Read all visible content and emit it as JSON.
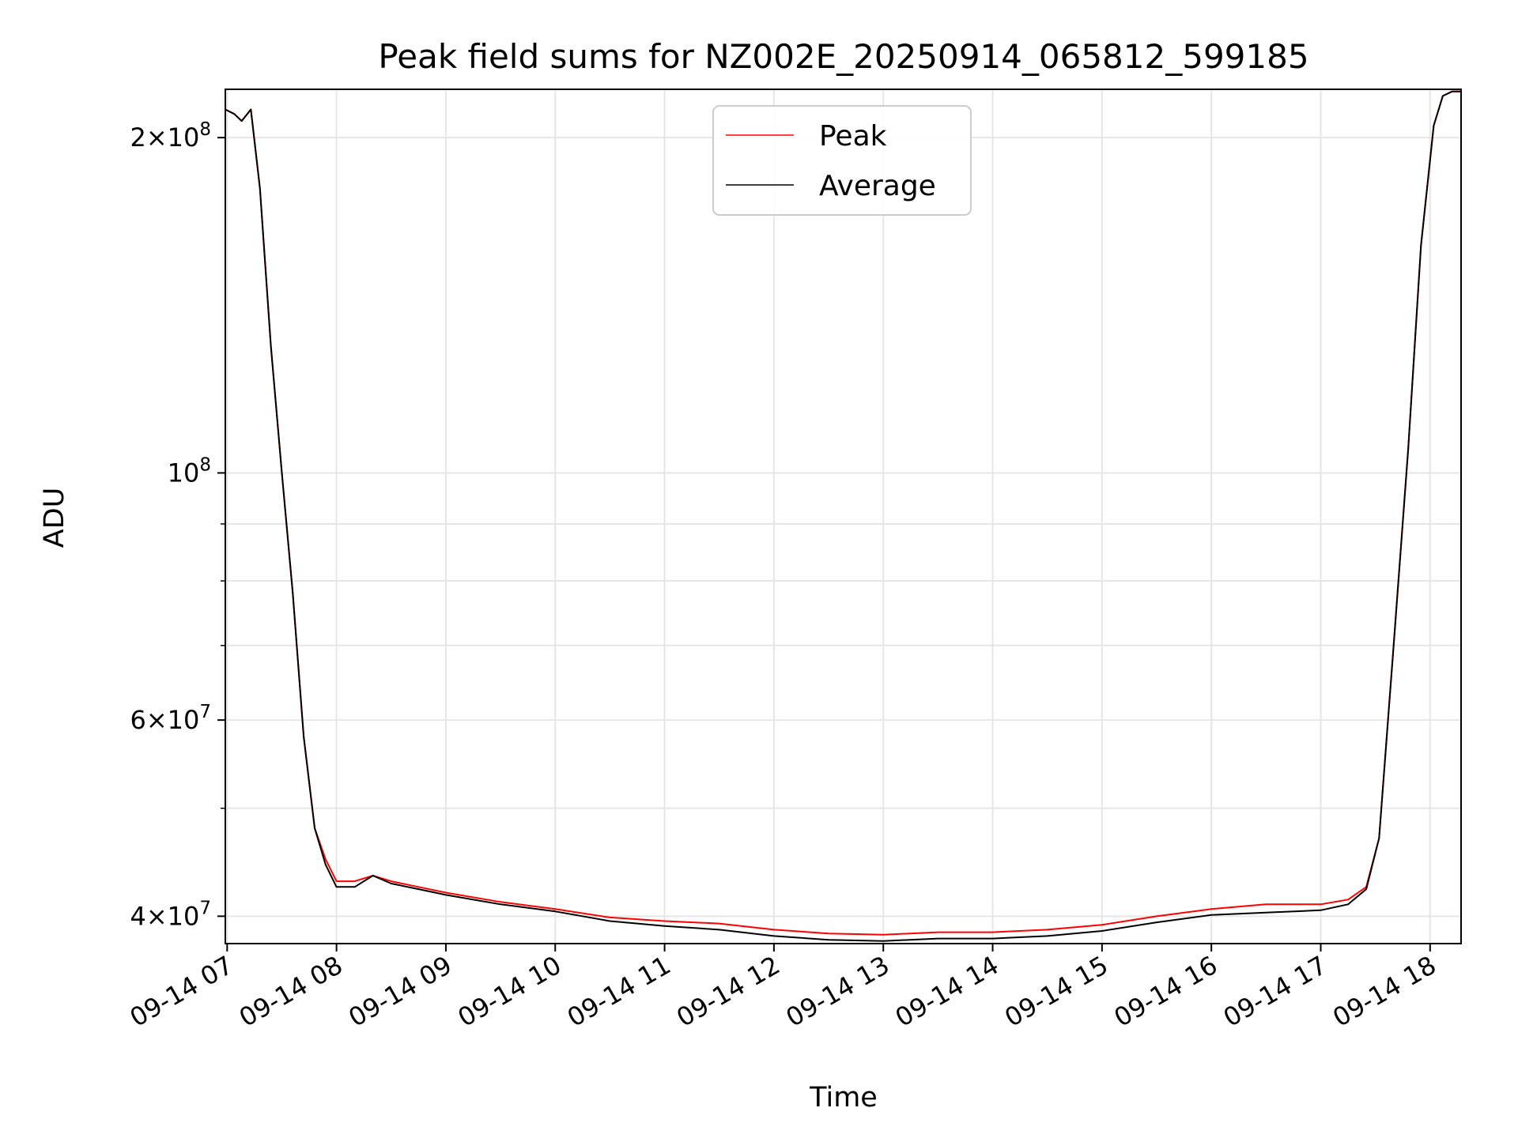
{
  "chart_data": {
    "type": "line",
    "title": "Peak field sums for NZ002E_20250914_065812_599185",
    "xlabel": "Time",
    "ylabel": "ADU",
    "yscale": "log",
    "xlim": [
      "2025-09-14 06:59",
      "2025-09-14 18:17"
    ],
    "ylim": [
      37800000,
      221000000
    ],
    "grid": true,
    "legend_position": "top-center",
    "x_ticks": [
      "09-14 07",
      "09-14 08",
      "09-14 09",
      "09-14 10",
      "09-14 11",
      "09-14 12",
      "09-14 13",
      "09-14 14",
      "09-14 15",
      "09-14 16",
      "09-14 17",
      "09-14 18"
    ],
    "y_tick_labels": [
      {
        "value": 40000000,
        "mantissa": "4",
        "exponent": "7"
      },
      {
        "value": 60000000,
        "mantissa": "6",
        "exponent": "7"
      },
      {
        "value": 100000000,
        "mantissa": "",
        "exponent": "8"
      },
      {
        "value": 200000000,
        "mantissa": "2",
        "exponent": "8"
      }
    ],
    "y_minor_ticks": [
      50000000,
      70000000,
      80000000,
      90000000
    ],
    "series": [
      {
        "name": "Peak",
        "color": "#ff0000",
        "x": [
          "2025-09-14 06:59",
          "2025-09-14 07:04",
          "2025-09-14 07:08",
          "2025-09-14 07:13",
          "2025-09-14 07:18",
          "2025-09-14 07:24",
          "2025-09-14 07:30",
          "2025-09-14 07:36",
          "2025-09-14 07:42",
          "2025-09-14 07:48",
          "2025-09-14 07:54",
          "2025-09-14 08:00",
          "2025-09-14 08:10",
          "2025-09-14 08:20",
          "2025-09-14 08:30",
          "2025-09-14 08:45",
          "2025-09-14 09:00",
          "2025-09-14 09:30",
          "2025-09-14 10:00",
          "2025-09-14 10:30",
          "2025-09-14 11:00",
          "2025-09-14 11:30",
          "2025-09-14 12:00",
          "2025-09-14 12:30",
          "2025-09-14 13:00",
          "2025-09-14 13:30",
          "2025-09-14 14:00",
          "2025-09-14 14:30",
          "2025-09-14 15:00",
          "2025-09-14 15:30",
          "2025-09-14 16:00",
          "2025-09-14 16:30",
          "2025-09-14 17:00",
          "2025-09-14 17:15",
          "2025-09-14 17:25",
          "2025-09-14 17:32",
          "2025-09-14 17:40",
          "2025-09-14 17:48",
          "2025-09-14 17:55",
          "2025-09-14 18:02",
          "2025-09-14 18:07",
          "2025-09-14 18:12",
          "2025-09-14 18:17"
        ],
        "y": [
          212000000,
          210000000,
          207000000,
          212000000,
          180000000,
          130000000,
          100000000,
          78000000,
          58000000,
          48000000,
          45000000,
          43000000,
          43000000,
          43500000,
          43000000,
          42500000,
          42000000,
          41200000,
          40600000,
          39900000,
          39600000,
          39400000,
          38900000,
          38600000,
          38500000,
          38700000,
          38700000,
          38900000,
          39300000,
          40000000,
          40600000,
          41000000,
          41000000,
          41400000,
          42500000,
          47000000,
          70000000,
          105000000,
          160000000,
          205000000,
          218000000,
          220000000,
          220000000
        ]
      },
      {
        "name": "Average",
        "color": "#000000",
        "x": [
          "2025-09-14 06:59",
          "2025-09-14 07:04",
          "2025-09-14 07:08",
          "2025-09-14 07:13",
          "2025-09-14 07:18",
          "2025-09-14 07:24",
          "2025-09-14 07:30",
          "2025-09-14 07:36",
          "2025-09-14 07:42",
          "2025-09-14 07:48",
          "2025-09-14 07:54",
          "2025-09-14 08:00",
          "2025-09-14 08:10",
          "2025-09-14 08:20",
          "2025-09-14 08:30",
          "2025-09-14 08:45",
          "2025-09-14 09:00",
          "2025-09-14 09:30",
          "2025-09-14 10:00",
          "2025-09-14 10:30",
          "2025-09-14 11:00",
          "2025-09-14 11:30",
          "2025-09-14 12:00",
          "2025-09-14 12:30",
          "2025-09-14 13:00",
          "2025-09-14 13:30",
          "2025-09-14 14:00",
          "2025-09-14 14:30",
          "2025-09-14 15:00",
          "2025-09-14 15:30",
          "2025-09-14 16:00",
          "2025-09-14 16:30",
          "2025-09-14 17:00",
          "2025-09-14 17:15",
          "2025-09-14 17:25",
          "2025-09-14 17:32",
          "2025-09-14 17:40",
          "2025-09-14 17:48",
          "2025-09-14 17:55",
          "2025-09-14 18:02",
          "2025-09-14 18:07",
          "2025-09-14 18:12",
          "2025-09-14 18:17"
        ],
        "y": [
          212000000,
          210000000,
          207000000,
          212000000,
          180000000,
          130000000,
          100000000,
          78000000,
          58000000,
          48000000,
          44500000,
          42500000,
          42500000,
          43500000,
          42800000,
          42300000,
          41800000,
          41000000,
          40400000,
          39600000,
          39200000,
          38900000,
          38400000,
          38100000,
          38000000,
          38200000,
          38200000,
          38400000,
          38800000,
          39500000,
          40100000,
          40300000,
          40500000,
          41000000,
          42300000,
          47000000,
          70000000,
          105000000,
          160000000,
          205000000,
          218000000,
          220000000,
          220000000
        ]
      }
    ]
  }
}
